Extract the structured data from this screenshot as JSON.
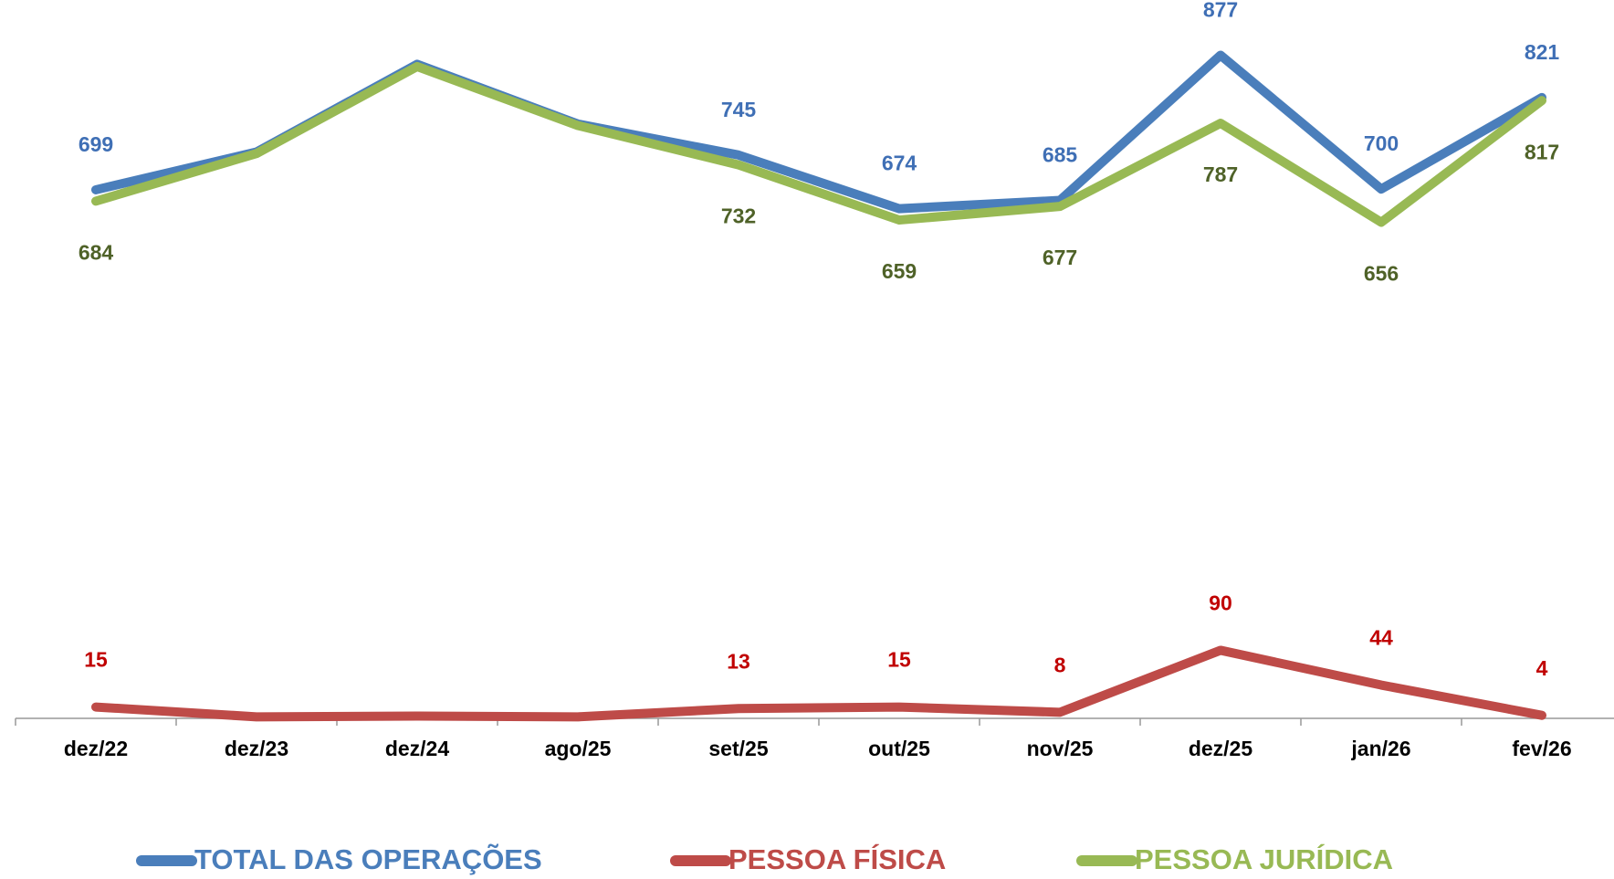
{
  "chart_data": {
    "type": "line",
    "categories": [
      "dez/22",
      "dez/23",
      "dez/24",
      "ago/25",
      "set/25",
      "out/25",
      "nov/25",
      "dez/25",
      "jan/26",
      "fev/26"
    ],
    "series": [
      {
        "name": "TOTAL DAS OPERAÇÕES",
        "color": "#4a7ebb",
        "label_color": "#3f6fb5",
        "values": [
          699,
          749,
          865,
          786,
          745,
          674,
          685,
          877,
          700,
          821
        ],
        "value_labels": [
          "699",
          null,
          null,
          null,
          "745",
          "674",
          "685",
          "877",
          "700",
          "821"
        ]
      },
      {
        "name": "PESSOA FÍSICA",
        "color": "#be4b48",
        "label_color": "#c00000",
        "values": [
          15,
          2,
          3,
          2,
          13,
          15,
          8,
          90,
          44,
          4
        ],
        "value_labels": [
          "15",
          null,
          null,
          null,
          "13",
          "15",
          "8",
          "90",
          "44",
          "4"
        ]
      },
      {
        "name": "PESSOA JURÍDICA",
        "color": "#98b954",
        "label_color": "#4f6228",
        "values": [
          684,
          747,
          862,
          784,
          732,
          659,
          677,
          787,
          656,
          817
        ],
        "value_labels": [
          "684",
          null,
          null,
          null,
          "732",
          "659",
          "677",
          "787",
          "656",
          "817"
        ]
      }
    ],
    "ylim": [
      0,
      950
    ],
    "legend": "bottom"
  }
}
